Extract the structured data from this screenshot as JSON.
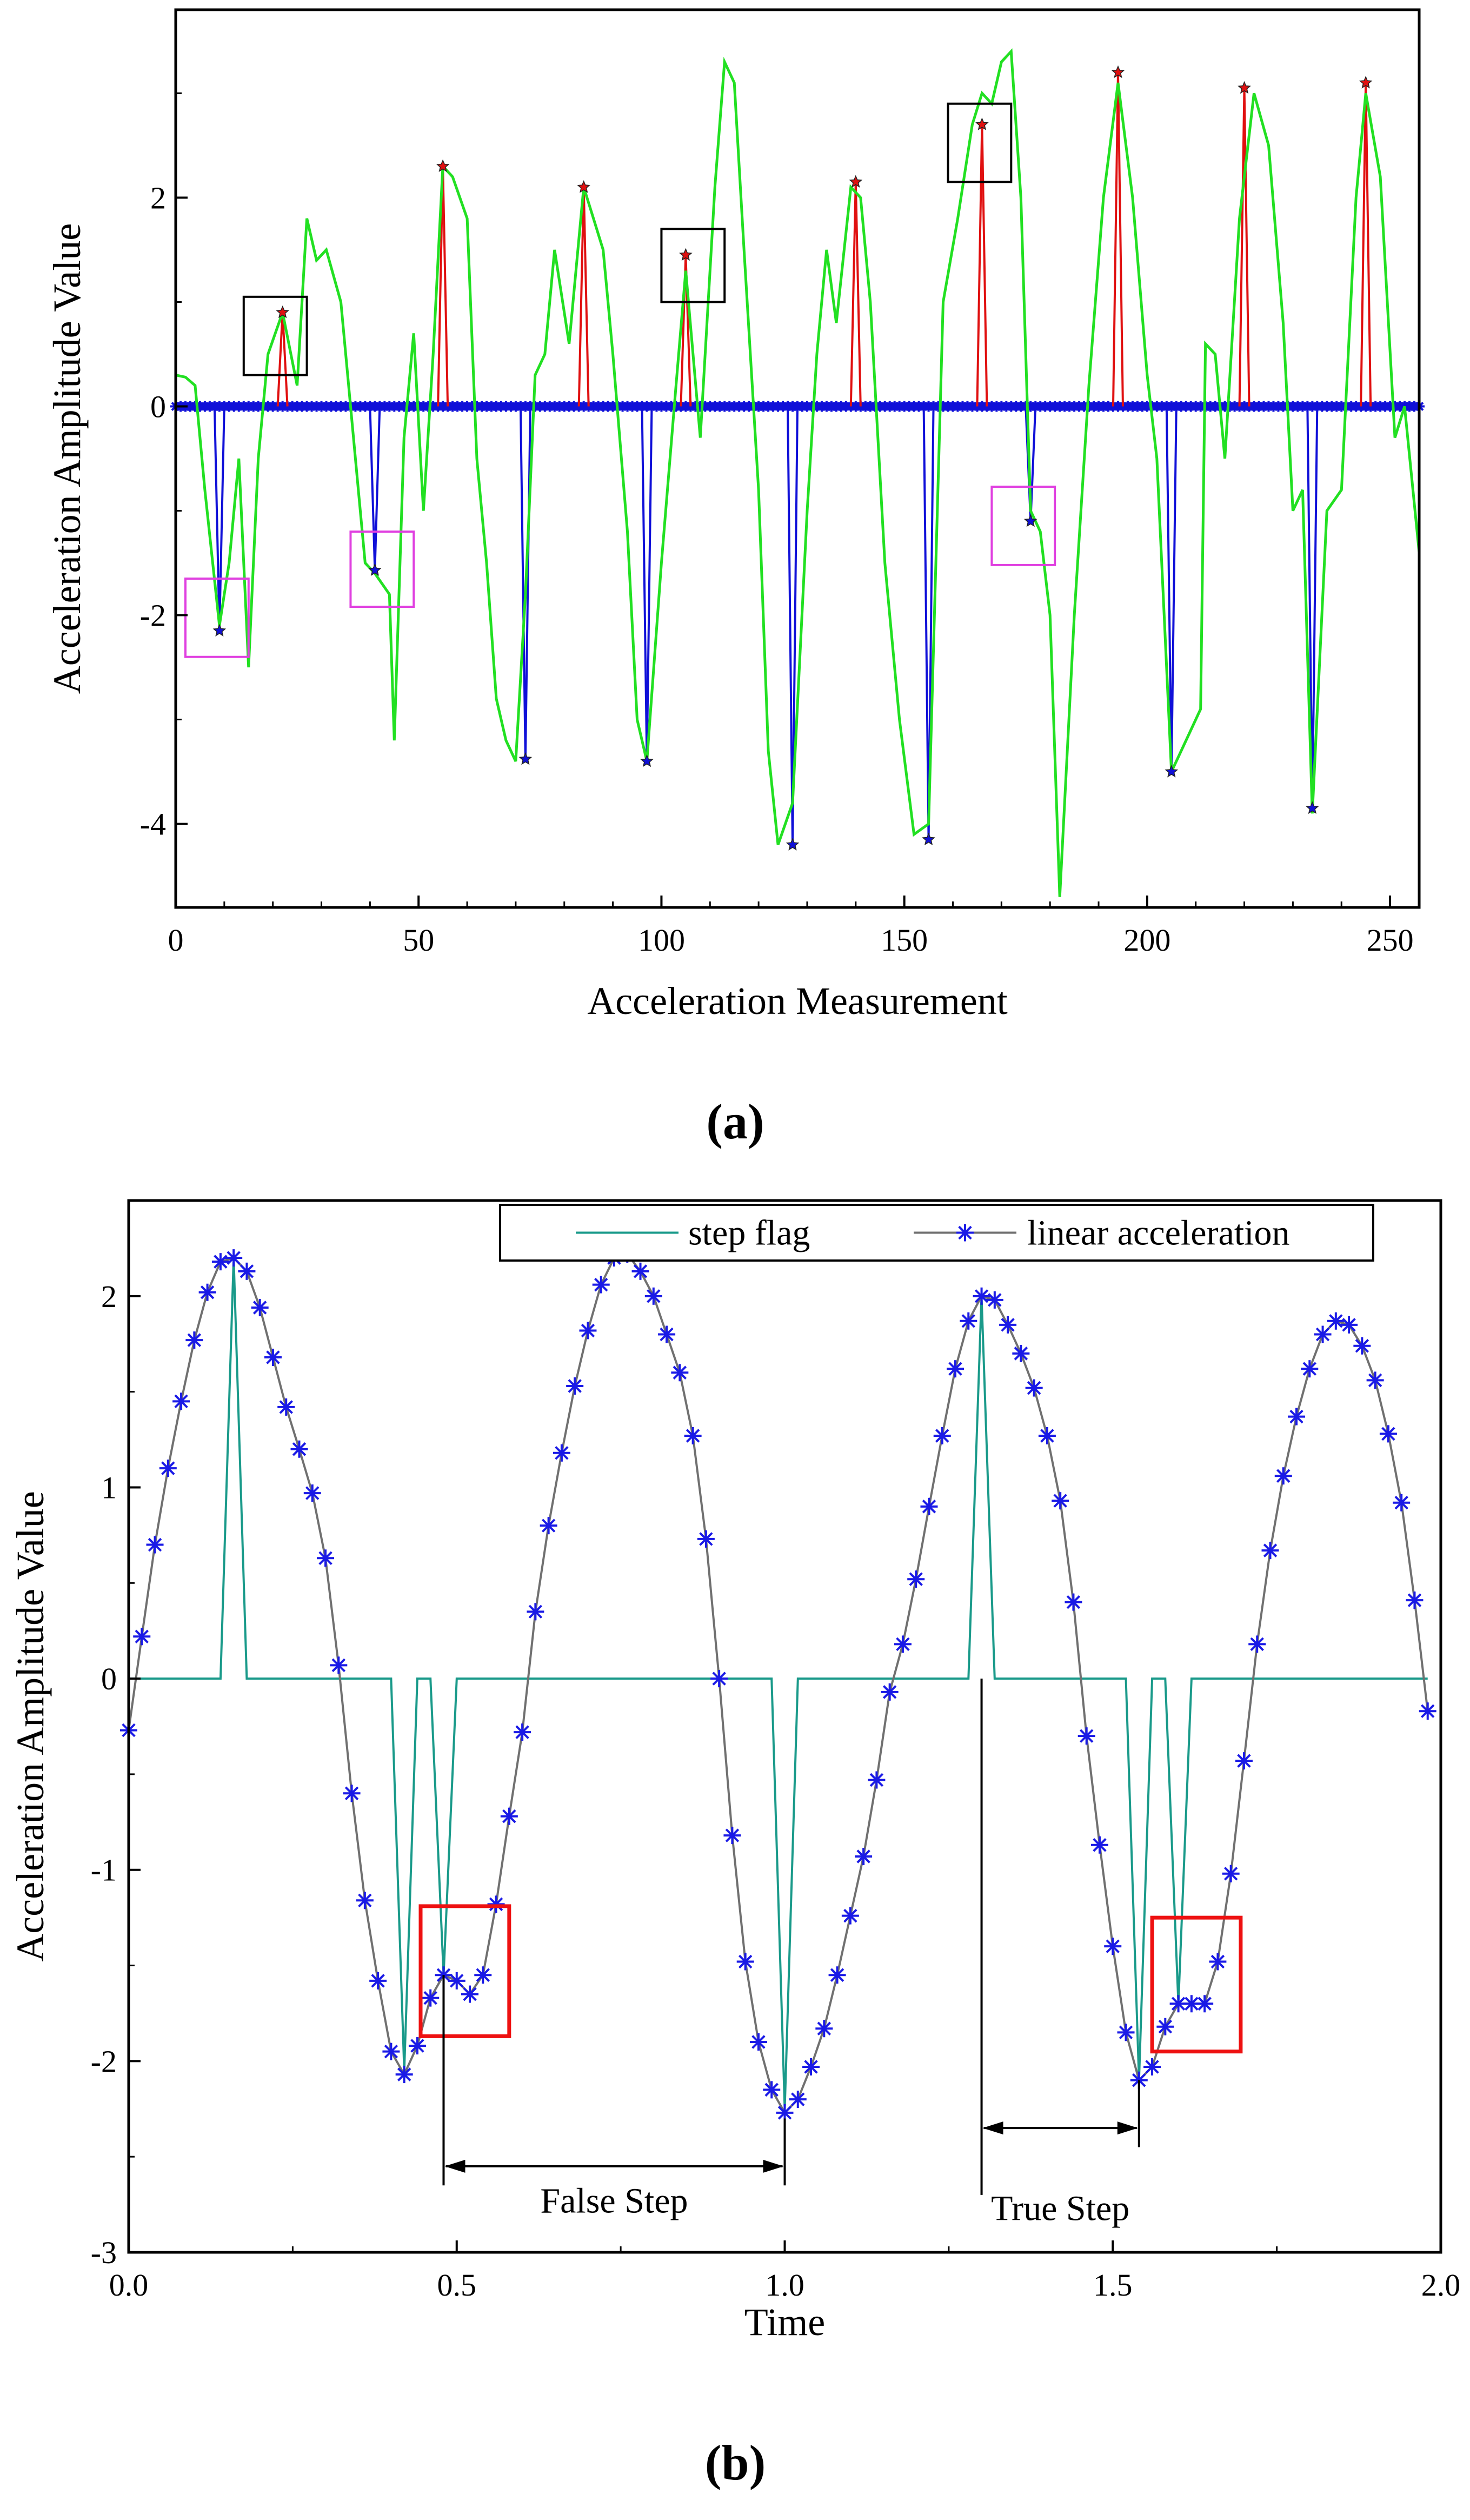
{
  "colors": {
    "green": "#22e022",
    "red": "#e01010",
    "blue": "#1010d8",
    "teal": "#1a9a8a",
    "grey": "#707070",
    "star_blue": "#1a1ae6",
    "magenta": "#e040e0",
    "box_red": "#ee1111",
    "black": "#000000"
  },
  "chart_data": [
    {
      "panel_label": "(a)",
      "type": "line",
      "xlabel": "Acceleration Measurement",
      "ylabel": "Acceleration Amplitude Value",
      "xlim": [
        0,
        256
      ],
      "ylim": [
        -4.8,
        3.8
      ],
      "xticks": [
        0,
        50,
        100,
        150,
        200,
        250
      ],
      "yticks": [
        -4,
        -2,
        0,
        2
      ],
      "series": [
        {
          "name": "acceleration",
          "color": "green",
          "x": [
            0,
            2,
            4,
            6,
            9,
            11,
            13,
            15,
            17,
            19,
            22,
            25,
            27,
            29,
            31,
            34,
            37,
            39,
            41,
            44,
            45,
            47,
            49,
            51,
            53,
            55,
            57,
            60,
            62,
            64,
            66,
            68,
            70,
            72,
            74,
            76,
            78,
            81,
            84,
            86,
            88,
            90,
            93,
            95,
            97,
            100,
            103,
            105,
            108,
            111,
            113,
            115,
            117,
            120,
            122,
            124,
            127,
            130,
            132,
            134,
            136,
            139,
            141,
            143,
            146,
            149,
            152,
            155,
            158,
            161,
            164,
            166,
            168,
            170,
            172,
            174,
            176,
            178,
            180,
            182,
            185,
            188,
            191,
            194,
            197,
            200,
            202,
            205,
            208,
            211,
            212,
            214,
            216,
            219,
            222,
            225,
            228,
            230,
            232,
            234,
            237,
            240,
            243,
            245,
            248,
            251,
            253,
            256
          ],
          "y": [
            0.3,
            0.28,
            0.2,
            -0.8,
            -2.1,
            -1.5,
            -0.5,
            -2.5,
            -0.5,
            0.5,
            0.9,
            0.2,
            1.8,
            1.4,
            1.5,
            1.0,
            -0.5,
            -1.5,
            -1.6,
            -1.8,
            -3.2,
            -0.3,
            0.7,
            -1.0,
            0.5,
            2.3,
            2.2,
            1.8,
            -0.5,
            -1.5,
            -2.8,
            -3.2,
            -3.4,
            -1.8,
            0.3,
            0.5,
            1.5,
            0.6,
            2.1,
            1.8,
            1.5,
            0.5,
            -1.2,
            -3.0,
            -3.4,
            -1.5,
            0.2,
            1.3,
            -0.3,
            2.1,
            3.3,
            3.1,
            1.5,
            -0.8,
            -3.3,
            -4.2,
            -3.8,
            -1.0,
            0.5,
            1.5,
            0.8,
            2.1,
            2.0,
            1.0,
            -1.5,
            -3.0,
            -4.1,
            -4.0,
            1.0,
            1.8,
            2.7,
            3.0,
            2.9,
            3.3,
            3.4,
            2.0,
            -1.0,
            -1.2,
            -2.0,
            -4.7,
            -2.0,
            0.2,
            2.0,
            3.1,
            2.0,
            0.3,
            -0.5,
            -3.5,
            -3.2,
            -2.9,
            0.6,
            0.5,
            -0.5,
            1.8,
            3.0,
            2.5,
            0.8,
            -1.0,
            -0.8,
            -3.9,
            -1.0,
            -0.8,
            2.0,
            3.0,
            2.2,
            -0.3,
            0.0,
            -1.4
          ]
        }
      ],
      "positive_peaks": {
        "color": "red",
        "marker": "star",
        "x": [
          22,
          55,
          84,
          105,
          140,
          166,
          194,
          220,
          245
        ],
        "y": [
          0.9,
          2.3,
          2.1,
          1.45,
          2.15,
          2.7,
          3.2,
          3.05,
          3.1
        ]
      },
      "negative_peaks": {
        "color": "blue",
        "marker": "star",
        "x": [
          9,
          41,
          72,
          97,
          127,
          155,
          176,
          205,
          234
        ],
        "y": [
          -2.15,
          -1.57,
          -3.38,
          -3.4,
          -4.2,
          -4.15,
          -1.1,
          -3.5,
          -3.85
        ]
      },
      "baseline_markers": {
        "color": "blue",
        "y": 0,
        "x_start": 0,
        "x_end": 256,
        "step": 1
      },
      "highlight_boxes": [
        {
          "color": "black",
          "x": [
            14,
            27
          ],
          "y": [
            0.3,
            1.05
          ]
        },
        {
          "color": "black",
          "x": [
            100,
            113
          ],
          "y": [
            1.0,
            1.7
          ]
        },
        {
          "color": "black",
          "x": [
            159,
            172
          ],
          "y": [
            2.15,
            2.9
          ]
        },
        {
          "color": "magenta",
          "x": [
            2,
            15
          ],
          "y": [
            -2.4,
            -1.65
          ]
        },
        {
          "color": "magenta",
          "x": [
            36,
            49
          ],
          "y": [
            -1.92,
            -1.2
          ]
        },
        {
          "color": "magenta",
          "x": [
            168,
            181
          ],
          "y": [
            -1.52,
            -0.77
          ]
        }
      ]
    },
    {
      "panel_label": "(b)",
      "type": "line",
      "xlabel": "Time",
      "ylabel": "Acceleration Amplitude Value",
      "xlim": [
        0.0,
        2.0
      ],
      "ylim": [
        -3,
        2.5
      ],
      "xticks": [
        "0.0",
        "0.5",
        "1.0",
        "1.5",
        "2.0"
      ],
      "yticks": [
        -3,
        -2,
        -1,
        0,
        1,
        2
      ],
      "legend": [
        "step flag",
        "linear acceleration"
      ],
      "legend_position": "top-right",
      "series": [
        {
          "name": "step flag",
          "color": "teal",
          "x": [
            0.0,
            0.14,
            0.16,
            0.18,
            0.4,
            0.42,
            0.44,
            0.46,
            0.48,
            0.5,
            0.98,
            1.0,
            1.02,
            1.28,
            1.3,
            1.32,
            1.52,
            1.54,
            1.56,
            1.58,
            1.6,
            1.62,
            1.98
          ],
          "y": [
            0.0,
            0.0,
            2.2,
            0.0,
            0.0,
            -2.05,
            0.0,
            0.0,
            -1.55,
            0.0,
            0.0,
            -2.25,
            0.0,
            0.0,
            2.0,
            0.0,
            0.0,
            -2.1,
            0.0,
            0.0,
            -1.7,
            0.0,
            0.0
          ]
        },
        {
          "name": "linear acceleration",
          "color": "grey",
          "marker": "asterisk",
          "x": [
            0.0,
            0.02,
            0.04,
            0.06,
            0.08,
            0.1,
            0.12,
            0.14,
            0.16,
            0.18,
            0.2,
            0.22,
            0.24,
            0.26,
            0.28,
            0.3,
            0.32,
            0.34,
            0.36,
            0.38,
            0.4,
            0.42,
            0.44,
            0.46,
            0.48,
            0.5,
            0.52,
            0.54,
            0.56,
            0.58,
            0.6,
            0.62,
            0.64,
            0.66,
            0.68,
            0.7,
            0.72,
            0.74,
            0.76,
            0.78,
            0.8,
            0.82,
            0.84,
            0.86,
            0.88,
            0.9,
            0.92,
            0.94,
            0.96,
            0.98,
            1.0,
            1.02,
            1.04,
            1.06,
            1.08,
            1.1,
            1.12,
            1.14,
            1.16,
            1.18,
            1.2,
            1.22,
            1.24,
            1.26,
            1.28,
            1.3,
            1.32,
            1.34,
            1.36,
            1.38,
            1.4,
            1.42,
            1.44,
            1.46,
            1.48,
            1.5,
            1.52,
            1.54,
            1.56,
            1.58,
            1.6,
            1.62,
            1.64,
            1.66,
            1.68,
            1.7,
            1.72,
            1.74,
            1.76,
            1.78,
            1.8,
            1.82,
            1.84,
            1.86,
            1.88,
            1.9,
            1.92,
            1.94,
            1.96,
            1.98
          ],
          "y": [
            -0.27,
            0.22,
            0.7,
            1.1,
            1.45,
            1.77,
            2.02,
            2.18,
            2.2,
            2.13,
            1.94,
            1.68,
            1.42,
            1.2,
            0.97,
            0.63,
            0.07,
            -0.6,
            -1.16,
            -1.58,
            -1.95,
            -2.07,
            -1.92,
            -1.67,
            -1.55,
            -1.58,
            -1.65,
            -1.55,
            -1.18,
            -0.72,
            -0.28,
            0.35,
            0.8,
            1.18,
            1.53,
            1.82,
            2.06,
            2.2,
            2.22,
            2.13,
            2.0,
            1.8,
            1.6,
            1.27,
            0.73,
            0.0,
            -0.82,
            -1.48,
            -1.9,
            -2.15,
            -2.27,
            -2.2,
            -2.03,
            -1.83,
            -1.55,
            -1.24,
            -0.93,
            -0.53,
            -0.07,
            0.18,
            0.52,
            0.9,
            1.27,
            1.62,
            1.87,
            2.0,
            1.98,
            1.85,
            1.7,
            1.52,
            1.27,
            0.93,
            0.4,
            -0.3,
            -0.87,
            -1.4,
            -1.85,
            -2.1,
            -2.03,
            -1.82,
            -1.7,
            -1.7,
            -1.7,
            -1.48,
            -1.02,
            -0.43,
            0.18,
            0.67,
            1.06,
            1.37,
            1.62,
            1.8,
            1.87,
            1.85,
            1.74,
            1.56,
            1.28,
            0.92,
            0.41,
            -0.17
          ]
        }
      ],
      "highlight_boxes": [
        {
          "color": "box_red",
          "x": [
            0.445,
            0.58
          ],
          "y": [
            -1.87,
            -1.19
          ]
        },
        {
          "color": "box_red",
          "x": [
            1.56,
            1.695
          ],
          "y": [
            -1.95,
            -1.25
          ]
        }
      ],
      "annotations": [
        {
          "label": "False Step",
          "x_start": 0.48,
          "x_end": 1.0,
          "arrow_y": -2.55,
          "text_x": 0.74,
          "text_y": -2.73,
          "guide_from": -1.55,
          "guide_to": -2.65
        },
        {
          "label": "True Step",
          "x_start": 1.3,
          "x_end": 1.54,
          "arrow_y": -2.35,
          "text_x": 1.42,
          "text_y": -2.77,
          "guide_from": 0.0,
          "guide_to": -2.7
        }
      ]
    }
  ]
}
